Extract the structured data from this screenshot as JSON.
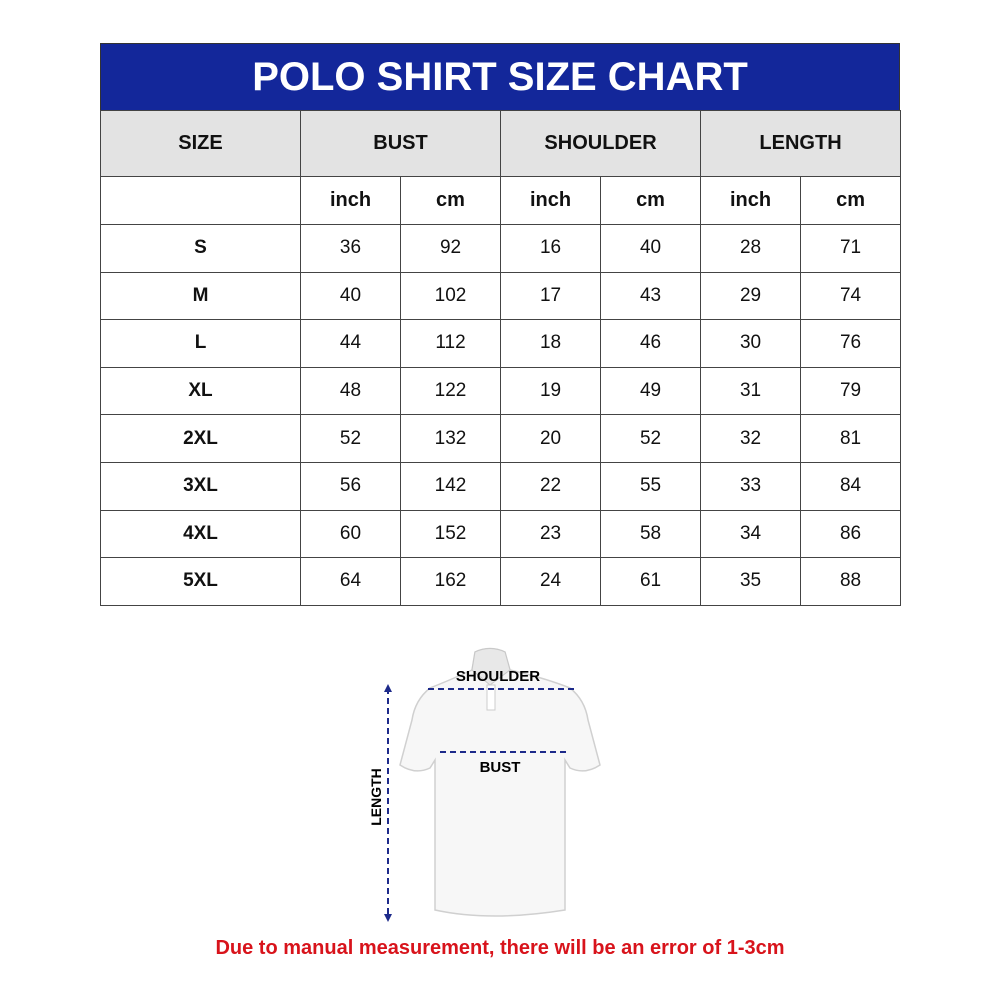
{
  "title": "POLO SHIRT SIZE CHART",
  "columns": {
    "size": "SIZE",
    "bust": "BUST",
    "shoulder": "SHOULDER",
    "length": "LENGTH"
  },
  "units": [
    "inch",
    "cm",
    "inch",
    "cm",
    "inch",
    "cm"
  ],
  "rows": [
    {
      "size": "S",
      "values": [
        "36",
        "92",
        "16",
        "40",
        "28",
        "71"
      ]
    },
    {
      "size": "M",
      "values": [
        "40",
        "102",
        "17",
        "43",
        "29",
        "74"
      ]
    },
    {
      "size": "L",
      "values": [
        "44",
        "112",
        "18",
        "46",
        "30",
        "76"
      ]
    },
    {
      "size": "XL",
      "values": [
        "48",
        "122",
        "19",
        "49",
        "31",
        "79"
      ]
    },
    {
      "size": "2XL",
      "values": [
        "52",
        "132",
        "20",
        "52",
        "32",
        "81"
      ]
    },
    {
      "size": "3XL",
      "values": [
        "56",
        "142",
        "22",
        "55",
        "33",
        "84"
      ]
    },
    {
      "size": "4XL",
      "values": [
        "60",
        "152",
        "23",
        "58",
        "34",
        "86"
      ]
    },
    {
      "size": "5XL",
      "values": [
        "64",
        "162",
        "24",
        "61",
        "35",
        "88"
      ]
    }
  ],
  "diagram": {
    "shoulder": "SHOULDER",
    "bust": "BUST",
    "length": "LENGTH"
  },
  "note": "Due to manual measurement, there will be an error of 1-3cm",
  "colors": {
    "header": "#13279a",
    "subheader": "#e3e3e3",
    "note": "#d8131b",
    "arrows": "#1d2a8a"
  }
}
